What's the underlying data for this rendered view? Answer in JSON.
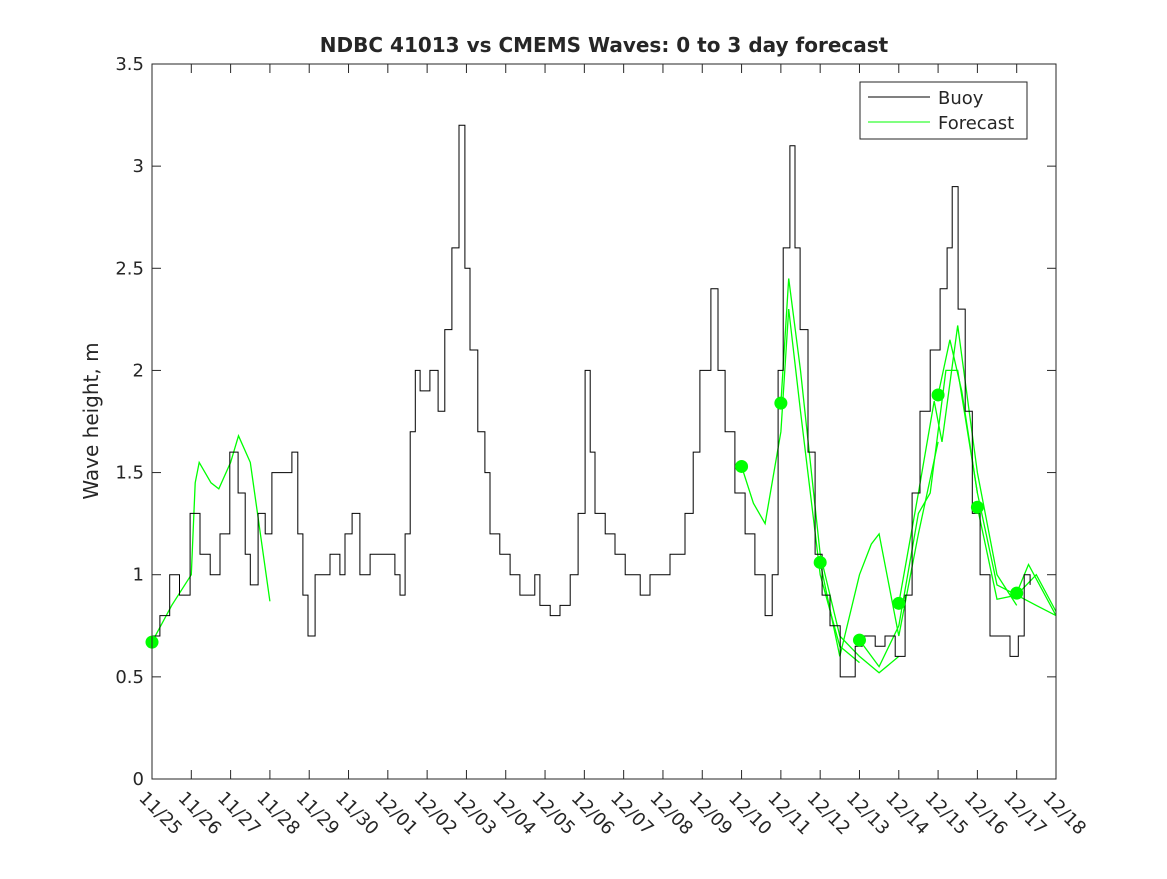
{
  "chart_data": {
    "type": "line",
    "title": "NDBC 41013 vs CMEMS Waves: 0 to 3 day forecast",
    "xlabel": "",
    "ylabel": "Wave height, m",
    "ylim": [
      0,
      3.5
    ],
    "xlim_days": [
      0,
      23
    ],
    "grid": false,
    "legend_position": "top-right",
    "x_tick_labels": [
      "11/25",
      "11/26",
      "11/27",
      "11/28",
      "11/29",
      "11/30",
      "12/01",
      "12/02",
      "12/03",
      "12/04",
      "12/05",
      "12/06",
      "12/07",
      "12/08",
      "12/09",
      "12/10",
      "12/11",
      "12/12",
      "12/13",
      "12/14",
      "12/15",
      "12/16",
      "12/17",
      "12/18"
    ],
    "y_ticks": [
      0,
      0.5,
      1,
      1.5,
      2,
      2.5,
      3,
      3.5
    ],
    "y_tick_labels": [
      "0",
      "0.5",
      "1",
      "1.5",
      "2",
      "2.5",
      "3",
      "3.5"
    ],
    "colors": {
      "buoy": "#000000",
      "forecast": "#00ff00"
    },
    "series": [
      {
        "name": "Buoy",
        "x_days": [
          0,
          0.2,
          0.45,
          0.7,
          0.97,
          1.22,
          1.48,
          1.73,
          1.98,
          2.19,
          2.37,
          2.5,
          2.7,
          2.88,
          3.05,
          3.38,
          3.56,
          3.71,
          3.84,
          3.97,
          4.15,
          4.53,
          4.78,
          4.91,
          5.09,
          5.29,
          5.55,
          5.93,
          6.18,
          6.31,
          6.44,
          6.57,
          6.7,
          6.82,
          7.07,
          7.28,
          7.45,
          7.63,
          7.81,
          7.96,
          8.09,
          8.29,
          8.47,
          8.6,
          8.85,
          9.11,
          9.36,
          9.74,
          9.87,
          10.13,
          10.38,
          10.64,
          10.84,
          11.02,
          11.15,
          11.27,
          11.53,
          11.78,
          12.04,
          12.42,
          12.67,
          13.18,
          13.56,
          13.77,
          13.94,
          14.22,
          14.4,
          14.58,
          14.83,
          15.09,
          15.34,
          15.6,
          15.78,
          15.93,
          16.06,
          16.23,
          16.36,
          16.49,
          16.69,
          16.87,
          17.05,
          17.25,
          17.51,
          17.76,
          17.89,
          18.07,
          18.4,
          18.65,
          18.91,
          19.16,
          19.34,
          19.54,
          19.8,
          20.05,
          20.23,
          20.36,
          20.51,
          20.69,
          20.87,
          21.07,
          21.32,
          21.58,
          21.83,
          22.04,
          22.19,
          22.34
        ],
        "values": [
          0.7,
          0.8,
          1.0,
          0.9,
          1.3,
          1.1,
          1.0,
          1.2,
          1.6,
          1.4,
          1.1,
          0.95,
          1.3,
          1.2,
          1.5,
          1.5,
          1.6,
          1.2,
          0.9,
          0.7,
          1.0,
          1.1,
          1.0,
          1.2,
          1.3,
          1.0,
          1.1,
          1.1,
          1.0,
          0.9,
          1.2,
          1.7,
          2.0,
          1.9,
          2.0,
          1.8,
          2.2,
          2.6,
          3.2,
          2.5,
          2.1,
          1.7,
          1.5,
          1.2,
          1.1,
          1.0,
          0.9,
          1.0,
          0.85,
          0.8,
          0.85,
          1.0,
          1.3,
          2.0,
          1.6,
          1.3,
          1.2,
          1.1,
          1.0,
          0.9,
          1.0,
          1.1,
          1.3,
          1.6,
          2.0,
          2.4,
          2.0,
          1.7,
          1.4,
          1.2,
          1.0,
          0.8,
          1.0,
          2.0,
          2.6,
          3.1,
          2.6,
          2.2,
          1.6,
          1.1,
          0.9,
          0.75,
          0.5,
          0.5,
          0.65,
          0.7,
          0.65,
          0.7,
          0.6,
          0.9,
          1.4,
          1.8,
          2.1,
          2.4,
          2.6,
          2.9,
          2.3,
          1.8,
          1.3,
          1.0,
          0.7,
          0.7,
          0.6,
          0.7,
          1.0,
          0.95
        ]
      },
      {
        "name": "Forecast",
        "segments": [
          {
            "start_day": 0,
            "x_days": [
              0,
              0.5,
              1,
              1.1,
              1.2,
              1.5,
              1.7,
              2,
              2.2,
              2.5,
              3
            ],
            "values": [
              0.67,
              0.85,
              1.0,
              1.45,
              1.55,
              1.45,
              1.42,
              1.55,
              1.68,
              1.55,
              0.87
            ]
          },
          {
            "start_day": 15,
            "x_days": [
              15,
              15.3,
              15.6,
              16,
              16.2,
              16.5,
              17,
              17.5,
              18
            ],
            "values": [
              1.53,
              1.35,
              1.25,
              1.7,
              2.3,
              1.8,
              1.0,
              0.65,
              0.57
            ]
          },
          {
            "start_day": 16,
            "x_days": [
              16,
              16.2,
              16.5,
              17,
              17.5,
              18,
              18.5,
              19
            ],
            "values": [
              1.84,
              2.45,
              2.0,
              1.1,
              0.7,
              0.6,
              0.52,
              0.6
            ]
          },
          {
            "start_day": 17,
            "x_days": [
              17,
              17.5,
              18,
              18.3,
              18.5,
              18.8,
              19,
              19.5,
              20
            ],
            "values": [
              1.06,
              0.6,
              1.0,
              1.15,
              1.2,
              0.9,
              0.7,
              1.2,
              1.65
            ]
          },
          {
            "start_day": 18,
            "x_days": [
              18,
              18.5,
              19,
              19.5,
              19.8,
              20.2,
              20.5,
              21
            ],
            "values": [
              0.68,
              0.55,
              0.75,
              1.3,
              1.4,
              2.0,
              2.0,
              1.4
            ]
          },
          {
            "start_day": 19,
            "x_days": [
              19,
              19.5,
              19.9,
              20.1,
              20.5,
              21,
              21.5,
              22
            ],
            "values": [
              0.86,
              1.4,
              1.85,
              1.65,
              2.22,
              1.5,
              1.0,
              0.85
            ]
          },
          {
            "start_day": 20,
            "x_days": [
              20,
              20.3,
              20.6,
              21,
              21.5,
              22,
              22.5,
              23
            ],
            "values": [
              1.88,
              2.15,
              1.9,
              1.4,
              0.95,
              0.9,
              0.85,
              0.8
            ]
          },
          {
            "start_day": 21,
            "x_days": [
              21,
              21.5,
              22,
              22.5,
              23
            ],
            "values": [
              1.33,
              0.88,
              0.9,
              1.0,
              0.82
            ]
          },
          {
            "start_day": 22,
            "x_days": [
              22,
              22.3,
              23
            ],
            "values": [
              0.91,
              1.05,
              0.8
            ]
          }
        ]
      }
    ],
    "legend": [
      "Buoy",
      "Forecast"
    ]
  }
}
